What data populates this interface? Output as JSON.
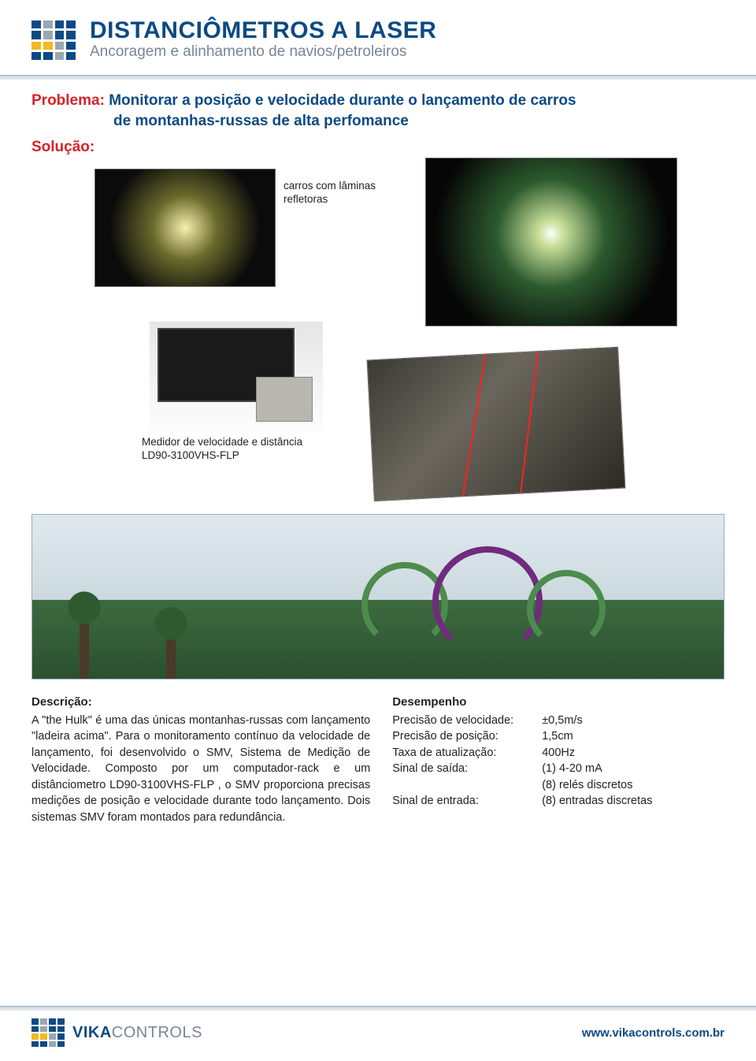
{
  "colors": {
    "primary_blue": "#0b4a84",
    "accent_red": "#d6232a",
    "subtitle_grey": "#7b8692",
    "text": "#222222",
    "rule_light": "#e6ecf1",
    "rule_dark": "#c9d2dc",
    "logo_blue": "#0b4a84",
    "logo_yellow": "#f3b91f",
    "logo_grey": "#9aa7b3"
  },
  "header": {
    "title": "DISTANCIÔMETROS A LASER",
    "subtitle": "Ancoragem e alinhamento de navios/petroleiros"
  },
  "problem": {
    "label": "Problema:",
    "text_line1": "Monitorar a posição e velocidade durante o lançamento de carros",
    "text_line2": "de montanhas-russas de alta perfomance"
  },
  "solution": {
    "label": "Solução:"
  },
  "captions": {
    "reflectors": "carros com lâminas refletoras",
    "device": "Medidor de velocidade e distância LD90-3100VHS-FLP"
  },
  "description": {
    "heading": "Descrição:",
    "body": "A \"the Hulk\" é uma das únicas montanhas-russas com lançamento \"ladeira acima\". Para o monitoramento contínuo da velocidade de lançamento, foi desenvolvido o SMV, Sistema de Medição de Velocidade. Composto por um computador-rack e um distânciometro LD90-3100VHS-FLP , o SMV proporciona precisas medições de posição e velocidade durante todo lançamento. Dois sistemas SMV foram montados para redundância."
  },
  "performance": {
    "heading": "Desempenho",
    "rows": [
      {
        "k": "Precisão de velocidade:",
        "v": "±0,5m/s"
      },
      {
        "k": "Precisão de posição:",
        "v": "1,5cm"
      },
      {
        "k": "Taxa de atualização:",
        "v": "400Hz"
      },
      {
        "k": "Sinal de saída:",
        "v": "(1) 4-20 mA"
      },
      {
        "k": "",
        "v": "(8) relés discretos"
      },
      {
        "k": "Sinal de entrada:",
        "v": "(8) entradas discretas"
      }
    ]
  },
  "footer": {
    "brand_bold": "VIKA",
    "brand_light": "CONTROLS",
    "url": "www.vikacontrols.com.br"
  },
  "logo_pattern": [
    "#0b4a84",
    "#9aa7b3",
    "#0b4a84",
    "#0b4a84",
    "#0b4a84",
    "#9aa7b3",
    "#0b4a84",
    "#0b4a84",
    "#f3b91f",
    "#f3b91f",
    "#9aa7b3",
    "#0b4a84",
    "#0b4a84",
    "#0b4a84",
    "#9aa7b3",
    "#0b4a84"
  ]
}
